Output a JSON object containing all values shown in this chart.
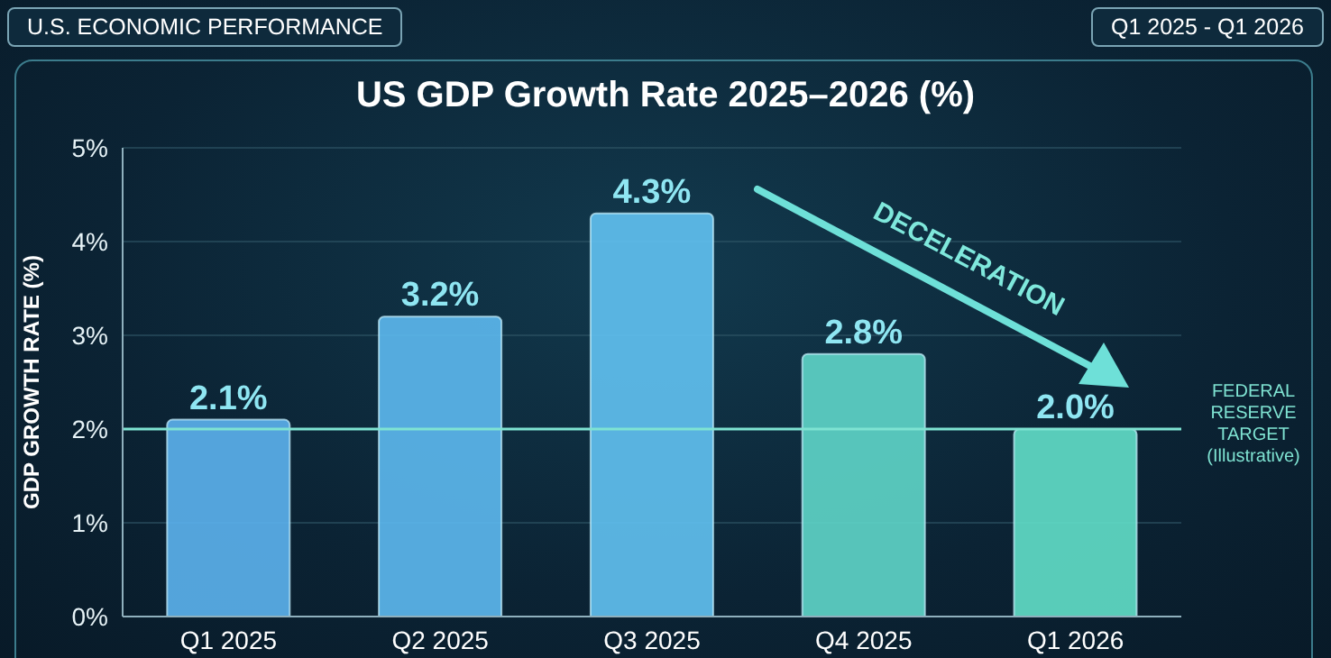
{
  "chart_data": {
    "type": "bar",
    "title": "US GDP Growth Rate 2025–2026 (%)",
    "subtitle": "Q1 2025 - Q1 2026",
    "ylabel": "GDP GROWTH RATE (%)",
    "categories": [
      "Q1 2025",
      "Q2 2025",
      "Q3 2025",
      "Q4 2025",
      "Q1 2026"
    ],
    "values": [
      2.1,
      3.2,
      4.3,
      2.8,
      2.0
    ],
    "colors": [
      "#5cb3ee",
      "#5db9f0",
      "#62c2f2",
      "#5fd6c9",
      "#62dfc9"
    ],
    "value_labels": [
      "2.1%",
      "3.2%",
      "4.3%",
      "2.8%",
      "2.0%"
    ],
    "ylim": [
      0,
      5
    ],
    "yticks": [
      {
        "value": 0,
        "label": "0%"
      },
      {
        "value": 1,
        "label": "1%"
      },
      {
        "value": 2,
        "label": "2%"
      },
      {
        "value": 3,
        "label": "3%"
      },
      {
        "value": 4,
        "label": "4%"
      },
      {
        "value": 5,
        "label": "5%"
      }
    ],
    "grid": "y",
    "ref_lines": [
      {
        "axis": "y",
        "value": 2,
        "label": "FEDERAL RESERVE TARGET (Illustrative)",
        "color": "#7fe3d2"
      }
    ],
    "annotations": [
      "U.S. ECONOMIC PERFORMANCE",
      "DECELERATION"
    ]
  }
}
